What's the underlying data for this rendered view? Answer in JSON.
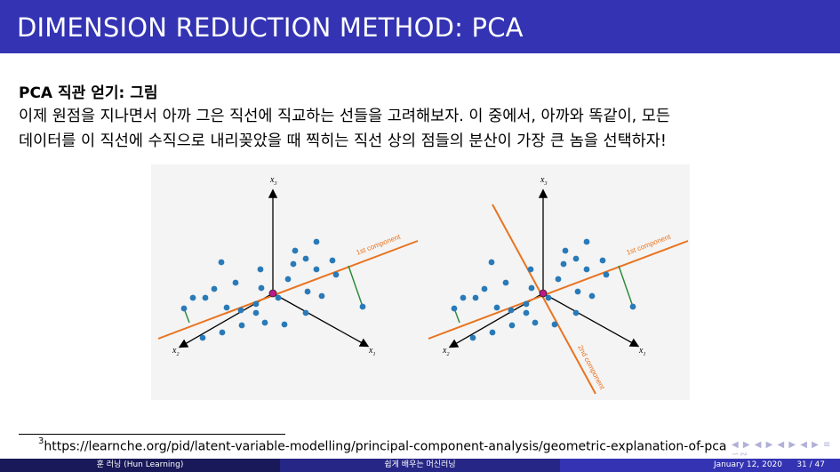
{
  "slide": {
    "title": "DIMENSION REDUCTION METHOD: PCA"
  },
  "block": {
    "title": "PCA 직관 얻기: 그림",
    "line1": "이제 원점을 지나면서 아까 그은 직선에 직교하는 선들을 고려해보자. 이 중에서, 아까와 똑같이, 모든",
    "line2": "데이터를 이 직선에 수직으로 내리꽂았을 때 찍히는 직선 상의 점들의 분산이 가장 큰 놈을 선택하자!"
  },
  "figure": {
    "axes": {
      "x1": "x",
      "x1_sub": "1",
      "x2": "x",
      "x2_sub": "2",
      "x3": "x",
      "x3_sub": "3"
    },
    "labels": {
      "first": "1st component",
      "second": "2nd component"
    },
    "colors": {
      "component_line": "#e8731f",
      "point": "#2a7ab8",
      "origin": "#c0188a",
      "projection": "#2e8b3a"
    }
  },
  "footnote": {
    "marker": "3",
    "text": "https://learnche.org/pid/latent-variable-modelling/principal-component-analysis/geometric-explanation-of-pca"
  },
  "nav": {
    "icons": "◀ ▶ ◀ ▶ ◀ ▶ ◀ ▶ ≡ ∽∾"
  },
  "footer": {
    "author": "훈 러닝 (Hun Learning)",
    "course": "쉽게 배우는 머신러닝",
    "date": "January 12, 2020",
    "page": "31 / 47"
  }
}
